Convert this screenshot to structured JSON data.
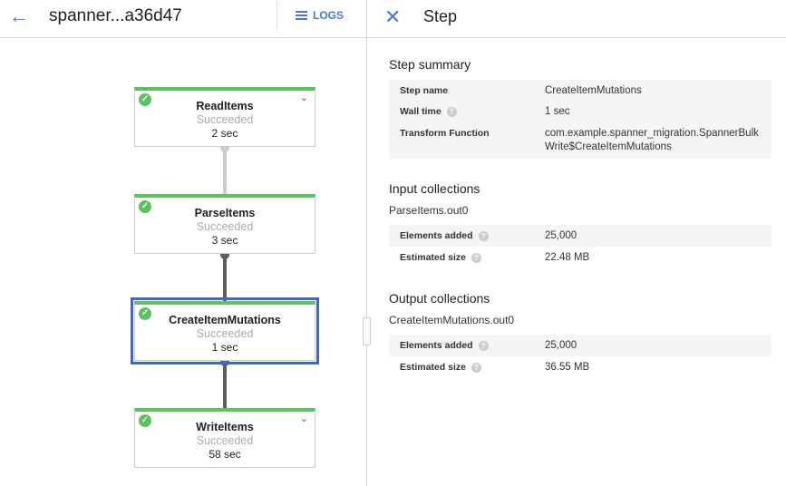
{
  "header": {
    "back_icon": "arrow-left-icon",
    "job_title": "spanner...a36d47",
    "logs_label": "LOGS"
  },
  "graph": {
    "nodes": [
      {
        "name": "ReadItems",
        "status": "Succeeded",
        "time": "2 sec",
        "expandable": true
      },
      {
        "name": "ParseItems",
        "status": "Succeeded",
        "time": "3 sec",
        "expandable": false
      },
      {
        "name": "CreateItemMutations",
        "status": "Succeeded",
        "time": "1 sec",
        "expandable": false,
        "selected": true
      },
      {
        "name": "WriteItems",
        "status": "Succeeded",
        "time": "58 sec",
        "expandable": true
      }
    ]
  },
  "panel": {
    "title": "Step",
    "summary": {
      "title": "Step summary",
      "rows": [
        {
          "key": "Step name",
          "value": "CreateItemMutations"
        },
        {
          "key": "Wall time",
          "value": "1 sec"
        },
        {
          "key": "Transform Function",
          "value": "com.example.spanner_migration.SpannerBulkWrite$CreateItemMutations"
        }
      ]
    },
    "input": {
      "title": "Input collections",
      "name": "ParseItems.out0",
      "rows": [
        {
          "key": "Elements added",
          "value": "25,000"
        },
        {
          "key": "Estimated size",
          "value": "22.48 MB"
        }
      ]
    },
    "output": {
      "title": "Output collections",
      "name": "CreateItemMutations.out0",
      "rows": [
        {
          "key": "Elements added",
          "value": "25,000"
        },
        {
          "key": "Estimated size",
          "value": "36.55 MB"
        }
      ]
    }
  },
  "colors": {
    "accent": "#4a76d8",
    "success": "#5cc15f",
    "selected": "#3e66cc"
  }
}
